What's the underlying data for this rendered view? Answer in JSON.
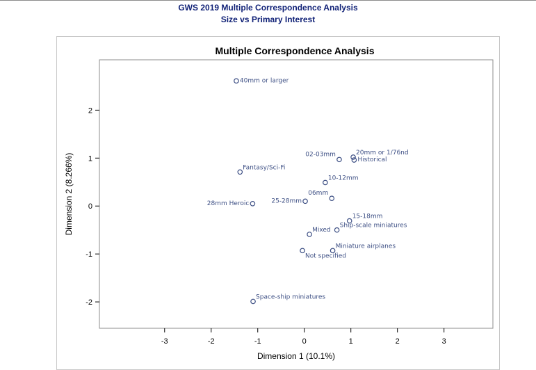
{
  "report": {
    "title_line1": "GWS 2019 Multiple Correspondence Analysis",
    "title_line2": "Size vs Primary Interest"
  },
  "colors": {
    "title": "#112277",
    "marker": "#3d4f84",
    "frame": "#c8c8c8",
    "axis": "#8c8c8c"
  },
  "chart_data": {
    "type": "scatter",
    "title": "Multiple Correspondence Analysis",
    "xlabel": "Dimension 1 (10.1%)",
    "ylabel": "Dimension 2 (8.266%)",
    "xlim": [
      -4.4,
      4.05
    ],
    "ylim": [
      -2.55,
      3.05
    ],
    "xticks": [
      -3,
      -2,
      -1,
      0,
      1,
      2,
      3
    ],
    "yticks": [
      -2,
      -1,
      0,
      1,
      2
    ],
    "grid": false,
    "legend": "none",
    "points": [
      {
        "label": "40mm or larger",
        "x": -1.46,
        "y": 2.61,
        "anchor": "right"
      },
      {
        "label": "20mm or 1/76nd",
        "x": 1.05,
        "y": 1.02,
        "anchor": "right-up"
      },
      {
        "label": "Historical",
        "x": 1.07,
        "y": 0.96,
        "anchor": "right"
      },
      {
        "label": "02-03mm",
        "x": 0.75,
        "y": 0.97,
        "anchor": "left-up"
      },
      {
        "label": "Fantasy/Sci-Fi",
        "x": -1.38,
        "y": 0.71,
        "anchor": "right-up"
      },
      {
        "label": "10-12mm",
        "x": 0.45,
        "y": 0.49,
        "anchor": "right-up"
      },
      {
        "label": "06mm",
        "x": 0.59,
        "y": 0.16,
        "anchor": "left-up"
      },
      {
        "label": "25-28mm",
        "x": 0.02,
        "y": 0.1,
        "anchor": "left"
      },
      {
        "label": "28mm Heroic",
        "x": -1.11,
        "y": 0.05,
        "anchor": "left"
      },
      {
        "label": "15-18mm",
        "x": 0.97,
        "y": -0.31,
        "anchor": "right-up"
      },
      {
        "label": "Ship-scale miniatures",
        "x": 0.7,
        "y": -0.5,
        "anchor": "right-up"
      },
      {
        "label": "Mixed",
        "x": 0.11,
        "y": -0.59,
        "anchor": "right-up"
      },
      {
        "label": "Miniature airplanes",
        "x": 0.61,
        "y": -0.93,
        "anchor": "right-up"
      },
      {
        "label": "Not specified",
        "x": -0.04,
        "y": -0.93,
        "anchor": "right-down"
      },
      {
        "label": "Space-ship miniatures",
        "x": -1.1,
        "y": -1.99,
        "anchor": "right-up"
      }
    ]
  }
}
